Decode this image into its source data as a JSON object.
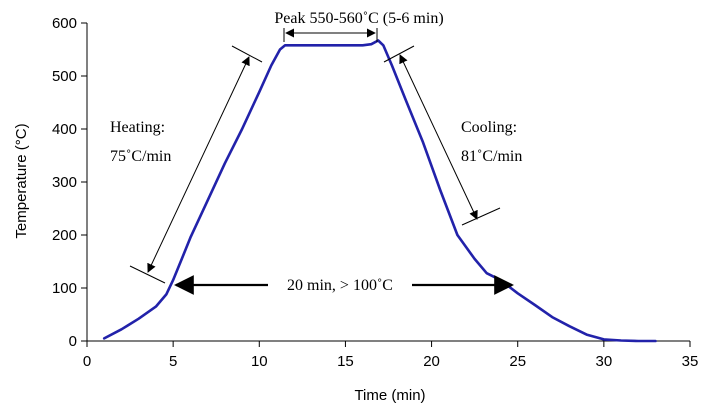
{
  "chart_data": {
    "type": "line",
    "title": "",
    "xlabel": "Time (min)",
    "ylabel": "Temperature (°C)",
    "xlim": [
      0,
      35
    ],
    "ylim": [
      0,
      600
    ],
    "x_ticks": [
      "0",
      "5",
      "10",
      "15",
      "20",
      "25",
      "30",
      "35"
    ],
    "y_ticks": [
      "0",
      "100",
      "200",
      "300",
      "400",
      "500",
      "600"
    ],
    "grid": false,
    "legend": "none",
    "series": [
      {
        "color": "#2222aa",
        "x": [
          1.0,
          2.0,
          3.0,
          4.0,
          4.6,
          5.0,
          5.5,
          6.0,
          7.0,
          8.0,
          9.0,
          10.0,
          10.7,
          11.2,
          11.5,
          12.0,
          13.0,
          14.0,
          15.0,
          16.0,
          16.5,
          16.9,
          17.2,
          17.7,
          18.5,
          19.5,
          20.5,
          21.5,
          22.5,
          23.2,
          24.0,
          25.0,
          26.0,
          27.0,
          28.0,
          29.0,
          30.0,
          31.0,
          32.0,
          33.0
        ],
        "y": [
          5,
          22,
          42,
          65,
          88,
          115,
          155,
          195,
          265,
          335,
          400,
          470,
          520,
          550,
          558,
          558,
          558,
          558,
          558,
          558,
          560,
          567,
          558,
          520,
          455,
          375,
          285,
          200,
          155,
          128,
          115,
          90,
          68,
          45,
          28,
          12,
          3,
          1,
          0,
          0
        ]
      }
    ],
    "annotations": {
      "peak": "Peak 550-560˚C (5-6 min)",
      "heating": [
        "Heating:",
        "75˚C/min"
      ],
      "cooling": [
        "Cooling:",
        "81˚C/min"
      ],
      "duration": "20 min, > 100˚C"
    }
  }
}
